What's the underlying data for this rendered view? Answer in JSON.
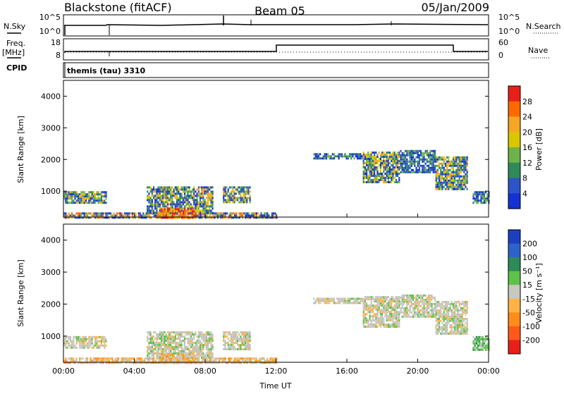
{
  "header": {
    "station": "Blackstone (fitACF)",
    "beam": "Beam 05",
    "date": "05/Jan/2009"
  },
  "top_panels": {
    "nsky_label": "N.Sky",
    "nsky_ticks": [
      "10^5",
      "10^0"
    ],
    "nsearch_label": "N.Search",
    "nsearch_ticks": [
      "10^5",
      "10^0"
    ],
    "freq_label": "Freq.",
    "freq_unit": "[MHz]",
    "freq_ticks": [
      "18",
      "8"
    ],
    "nave_label": "Nave",
    "nave_ticks": [
      "60",
      "0"
    ],
    "cpid_label": "CPID",
    "cpid_text": "themis (tau) 3310"
  },
  "chart_data": [
    {
      "type": "heatmap",
      "title": "",
      "xlabel": "",
      "ylabel": "Slant Range [km]",
      "xlim": [
        0,
        24
      ],
      "ylim": [
        180,
        4500
      ],
      "yticks": [
        "1000",
        "2000",
        "3000",
        "4000"
      ],
      "xticks": [],
      "colorbar": {
        "label": "Power [dB]",
        "ticks": [
          "4",
          "8",
          "12",
          "16",
          "20",
          "24",
          "28"
        ],
        "colors": [
          "#1432d2",
          "#2d55c8",
          "#2e8b57",
          "#6fb24a",
          "#d9c600",
          "#f5a623",
          "#ff6a00",
          "#e8201a"
        ]
      },
      "regions": [
        {
          "t": [
            0.0,
            2.4
          ],
          "r": [
            650,
            1000
          ],
          "level": "mid"
        },
        {
          "t": [
            0.0,
            12.0
          ],
          "r": [
            190,
            330
          ],
          "level": "high"
        },
        {
          "t": [
            4.7,
            8.4
          ],
          "r": [
            330,
            1150
          ],
          "level": "mid"
        },
        {
          "t": [
            5.5,
            7.5
          ],
          "r": [
            190,
            460
          ],
          "level": "max"
        },
        {
          "t": [
            9.0,
            10.5
          ],
          "r": [
            620,
            1150
          ],
          "level": "mid"
        },
        {
          "t": [
            14.1,
            16.9
          ],
          "r": [
            2050,
            2200
          ],
          "level": "low"
        },
        {
          "t": [
            16.9,
            19.0
          ],
          "r": [
            1300,
            2250
          ],
          "level": "mid"
        },
        {
          "t": [
            19.0,
            21.0
          ],
          "r": [
            1600,
            2300
          ],
          "level": "low"
        },
        {
          "t": [
            21.0,
            22.8
          ],
          "r": [
            1050,
            2100
          ],
          "level": "mid"
        },
        {
          "t": [
            23.1,
            24.0
          ],
          "r": [
            600,
            1000
          ],
          "level": "low"
        }
      ]
    },
    {
      "type": "heatmap",
      "title": "",
      "xlabel": "Time UT",
      "ylabel": "Slant Range [km]",
      "xlim": [
        0,
        24
      ],
      "ylim": [
        180,
        4500
      ],
      "yticks": [
        "1000",
        "2000",
        "3000",
        "4000"
      ],
      "xticks": [
        "00:00",
        "04:00",
        "08:00",
        "12:00",
        "16:00",
        "20:00",
        "00:00"
      ],
      "colorbar": {
        "label": "Velocity [m s⁻¹]",
        "ticks": [
          "200",
          "100",
          "50",
          "15",
          "-15",
          "-50",
          "-100",
          "-200"
        ],
        "colors": [
          "#1d3fbf",
          "#2e63c9",
          "#2e8b57",
          "#5fc24a",
          "#c8c8c0",
          "#ffb347",
          "#ff8c1a",
          "#ff5a1a",
          "#e8201a"
        ]
      },
      "regions": [
        {
          "t": [
            0.0,
            2.4
          ],
          "r": [
            650,
            1000
          ],
          "level": "gray"
        },
        {
          "t": [
            0.0,
            12.0
          ],
          "r": [
            190,
            330
          ],
          "level": "orange"
        },
        {
          "t": [
            4.7,
            8.4
          ],
          "r": [
            330,
            1150
          ],
          "level": "gray"
        },
        {
          "t": [
            5.5,
            7.5
          ],
          "r": [
            190,
            460
          ],
          "level": "orange"
        },
        {
          "t": [
            9.0,
            10.5
          ],
          "r": [
            620,
            1150
          ],
          "level": "gray"
        },
        {
          "t": [
            14.1,
            16.9
          ],
          "r": [
            2050,
            2200
          ],
          "level": "gray"
        },
        {
          "t": [
            16.9,
            19.0
          ],
          "r": [
            1300,
            2250
          ],
          "level": "gray"
        },
        {
          "t": [
            19.0,
            21.0
          ],
          "r": [
            1600,
            2300
          ],
          "level": "gray"
        },
        {
          "t": [
            21.0,
            22.8
          ],
          "r": [
            1050,
            2100
          ],
          "level": "gray"
        },
        {
          "t": [
            23.1,
            24.0
          ],
          "r": [
            600,
            1000
          ],
          "level": "green"
        }
      ]
    }
  ]
}
